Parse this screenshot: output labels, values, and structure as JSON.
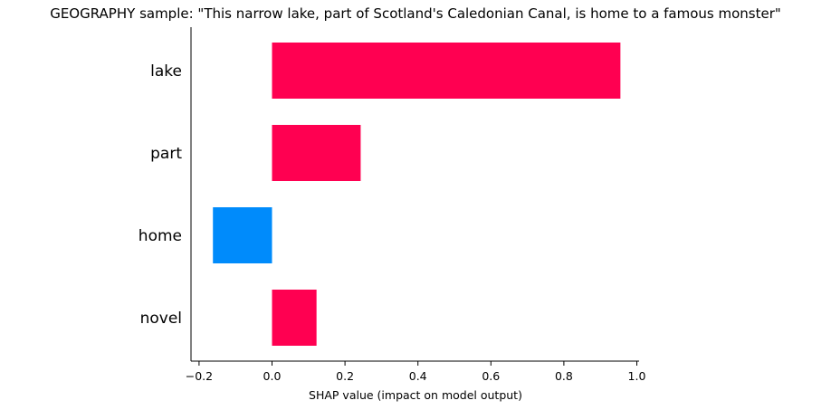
{
  "chart_data": {
    "type": "bar",
    "orientation": "horizontal",
    "title": "GEOGRAPHY sample: \"This narrow lake, part of Scotland's Caledonian Canal, is home to a famous monster\"",
    "xlabel": "SHAP value (impact on model output)",
    "ylabel": "",
    "categories": [
      "lake",
      "part",
      "home",
      "novel"
    ],
    "values": [
      0.955,
      0.243,
      -0.162,
      0.122
    ],
    "xlim": [
      -0.22,
      1.0
    ],
    "xticks": [
      -0.2,
      0.0,
      0.2,
      0.4,
      0.6,
      0.8,
      1.0
    ],
    "xtick_labels": [
      "−0.2",
      "0.0",
      "0.2",
      "0.4",
      "0.6",
      "0.8",
      "1.0"
    ],
    "grid": false,
    "legend": "none",
    "colors": {
      "positive": "#ff0051",
      "negative": "#008bfb",
      "axis": "#000000"
    }
  }
}
